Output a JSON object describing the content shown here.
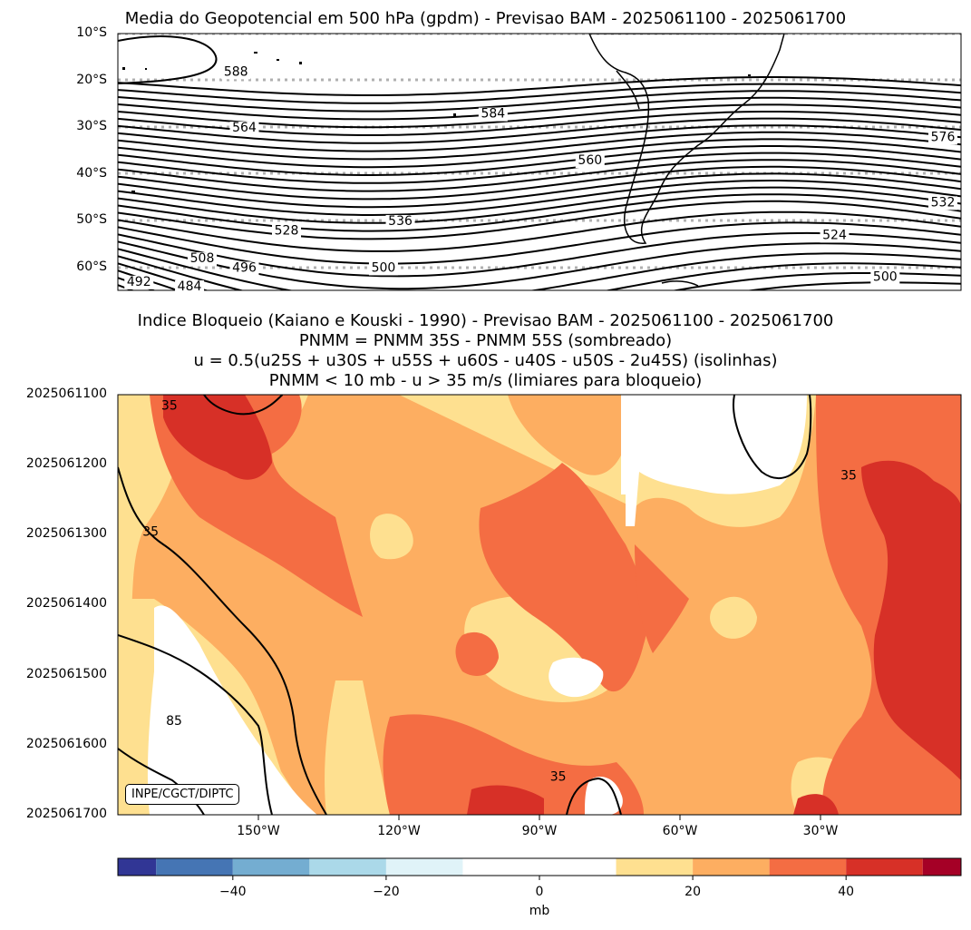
{
  "chart_data": [
    {
      "type": "contour-map",
      "title": "Media do Geopotencial em 500 hPa (gpdm) - Previsao BAM - 2025061100 - 2025061700",
      "y_ticks": [
        "10°S",
        "20°S",
        "30°S",
        "40°S",
        "50°S",
        "60°S"
      ],
      "lat_range": [
        -10,
        -65
      ],
      "contour_labels": [
        {
          "label": "588",
          "lon": -172,
          "lat": -19
        },
        {
          "label": "584",
          "lon": -111,
          "lat": -28
        },
        {
          "label": "564",
          "lon": -170,
          "lat": -31
        },
        {
          "label": "576",
          "lon": 1,
          "lat": -33
        },
        {
          "label": "560",
          "lon": -88,
          "lat": -38
        },
        {
          "label": "536",
          "lon": -133,
          "lat": -51
        },
        {
          "label": "532",
          "lon": 0,
          "lat": -47
        },
        {
          "label": "528",
          "lon": -160,
          "lat": -53
        },
        {
          "label": "524",
          "lon": -30,
          "lat": -54
        },
        {
          "label": "508",
          "lon": -180,
          "lat": -59
        },
        {
          "label": "496",
          "lon": -170,
          "lat": -61
        },
        {
          "label": "500",
          "lon": -137,
          "lat": -61
        },
        {
          "label": "500",
          "lon": -18,
          "lat": -63
        },
        {
          "label": "492",
          "lon": -195,
          "lat": -64
        },
        {
          "label": "484",
          "lon": -183,
          "lat": -65
        }
      ]
    },
    {
      "type": "filled-contour",
      "title_lines": [
        "Indice Bloqueio (Kaiano e Kouski - 1990) - Previsao BAM - 2025061100 - 2025061700",
        "PNMM = PNMM 35S - PNMM 55S (sombreado)",
        "u = 0.5(u25S + u30S + u55S + u60S - u40S - u50S - 2u45S) (isolinhas)",
        "PNMM < 10 mb - u > 35 m/s (limiares para bloqueio)"
      ],
      "y_ticks": [
        "2025061100",
        "2025061200",
        "2025061300",
        "2025061400",
        "2025061500",
        "2025061600",
        "2025061700"
      ],
      "x_ticks": [
        "150°W",
        "120°W",
        "90°W",
        "60°W",
        "30°W"
      ],
      "x_tick_values": [
        -150,
        -120,
        -90,
        -60,
        -30
      ],
      "x_range": [
        -180,
        0
      ],
      "isoline_labels": [
        {
          "label": "35",
          "lon": -169,
          "day": 0.15
        },
        {
          "label": "35",
          "lon": -24,
          "day": 1.15
        },
        {
          "label": "35",
          "lon": -173,
          "day": 1.95
        },
        {
          "label": "85",
          "lon": -168,
          "day": 4.65
        },
        {
          "label": "35",
          "lon": -86,
          "day": 5.45
        }
      ],
      "credit": "INPE/CGCT/DIPTC"
    },
    {
      "type": "colorbar",
      "label": "mb",
      "range": [
        -55,
        55
      ],
      "boundaries": [
        -55,
        -50,
        -40,
        -30,
        -20,
        -10,
        10,
        20,
        30,
        40,
        50,
        55
      ],
      "colors": [
        "#313695",
        "#4575b4",
        "#74add1",
        "#abd9e9",
        "#e0f3f8",
        "#ffffff",
        "#fee090",
        "#fdae61",
        "#f46d43",
        "#d73027",
        "#a50026"
      ],
      "ticks": [
        "−40",
        "−20",
        "0",
        "20",
        "40"
      ],
      "tick_values": [
        -40,
        -20,
        0,
        20,
        40
      ]
    }
  ]
}
